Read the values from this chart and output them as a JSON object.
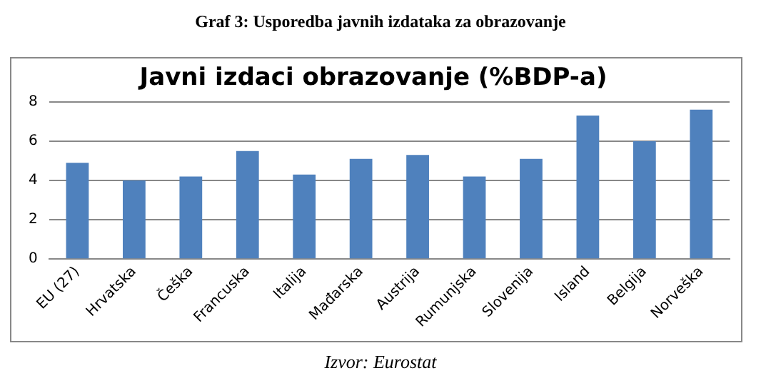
{
  "chart_data": {
    "type": "bar",
    "title": "Javni izdaci obrazovanje (%BDP-a)",
    "annotations": [
      "Graf 3: Usporedba javnih izdataka za obrazovanje",
      "Izvor: Eurostat"
    ],
    "categories": [
      "EU (27)",
      "Hrvatska",
      "Češka",
      "Francuska",
      "Italija",
      "Mađarska",
      "Austrija",
      "Rumunjska",
      "Slovenija",
      "Island",
      "Belgija",
      "Norveška"
    ],
    "values": [
      4.9,
      4.0,
      4.2,
      5.5,
      4.3,
      5.1,
      5.3,
      4.2,
      5.1,
      7.3,
      6.0,
      7.6
    ],
    "color": "#4f81bd",
    "ylim": [
      0,
      8
    ],
    "yticks": [
      0,
      2,
      4,
      6,
      8
    ],
    "grid": "y"
  }
}
